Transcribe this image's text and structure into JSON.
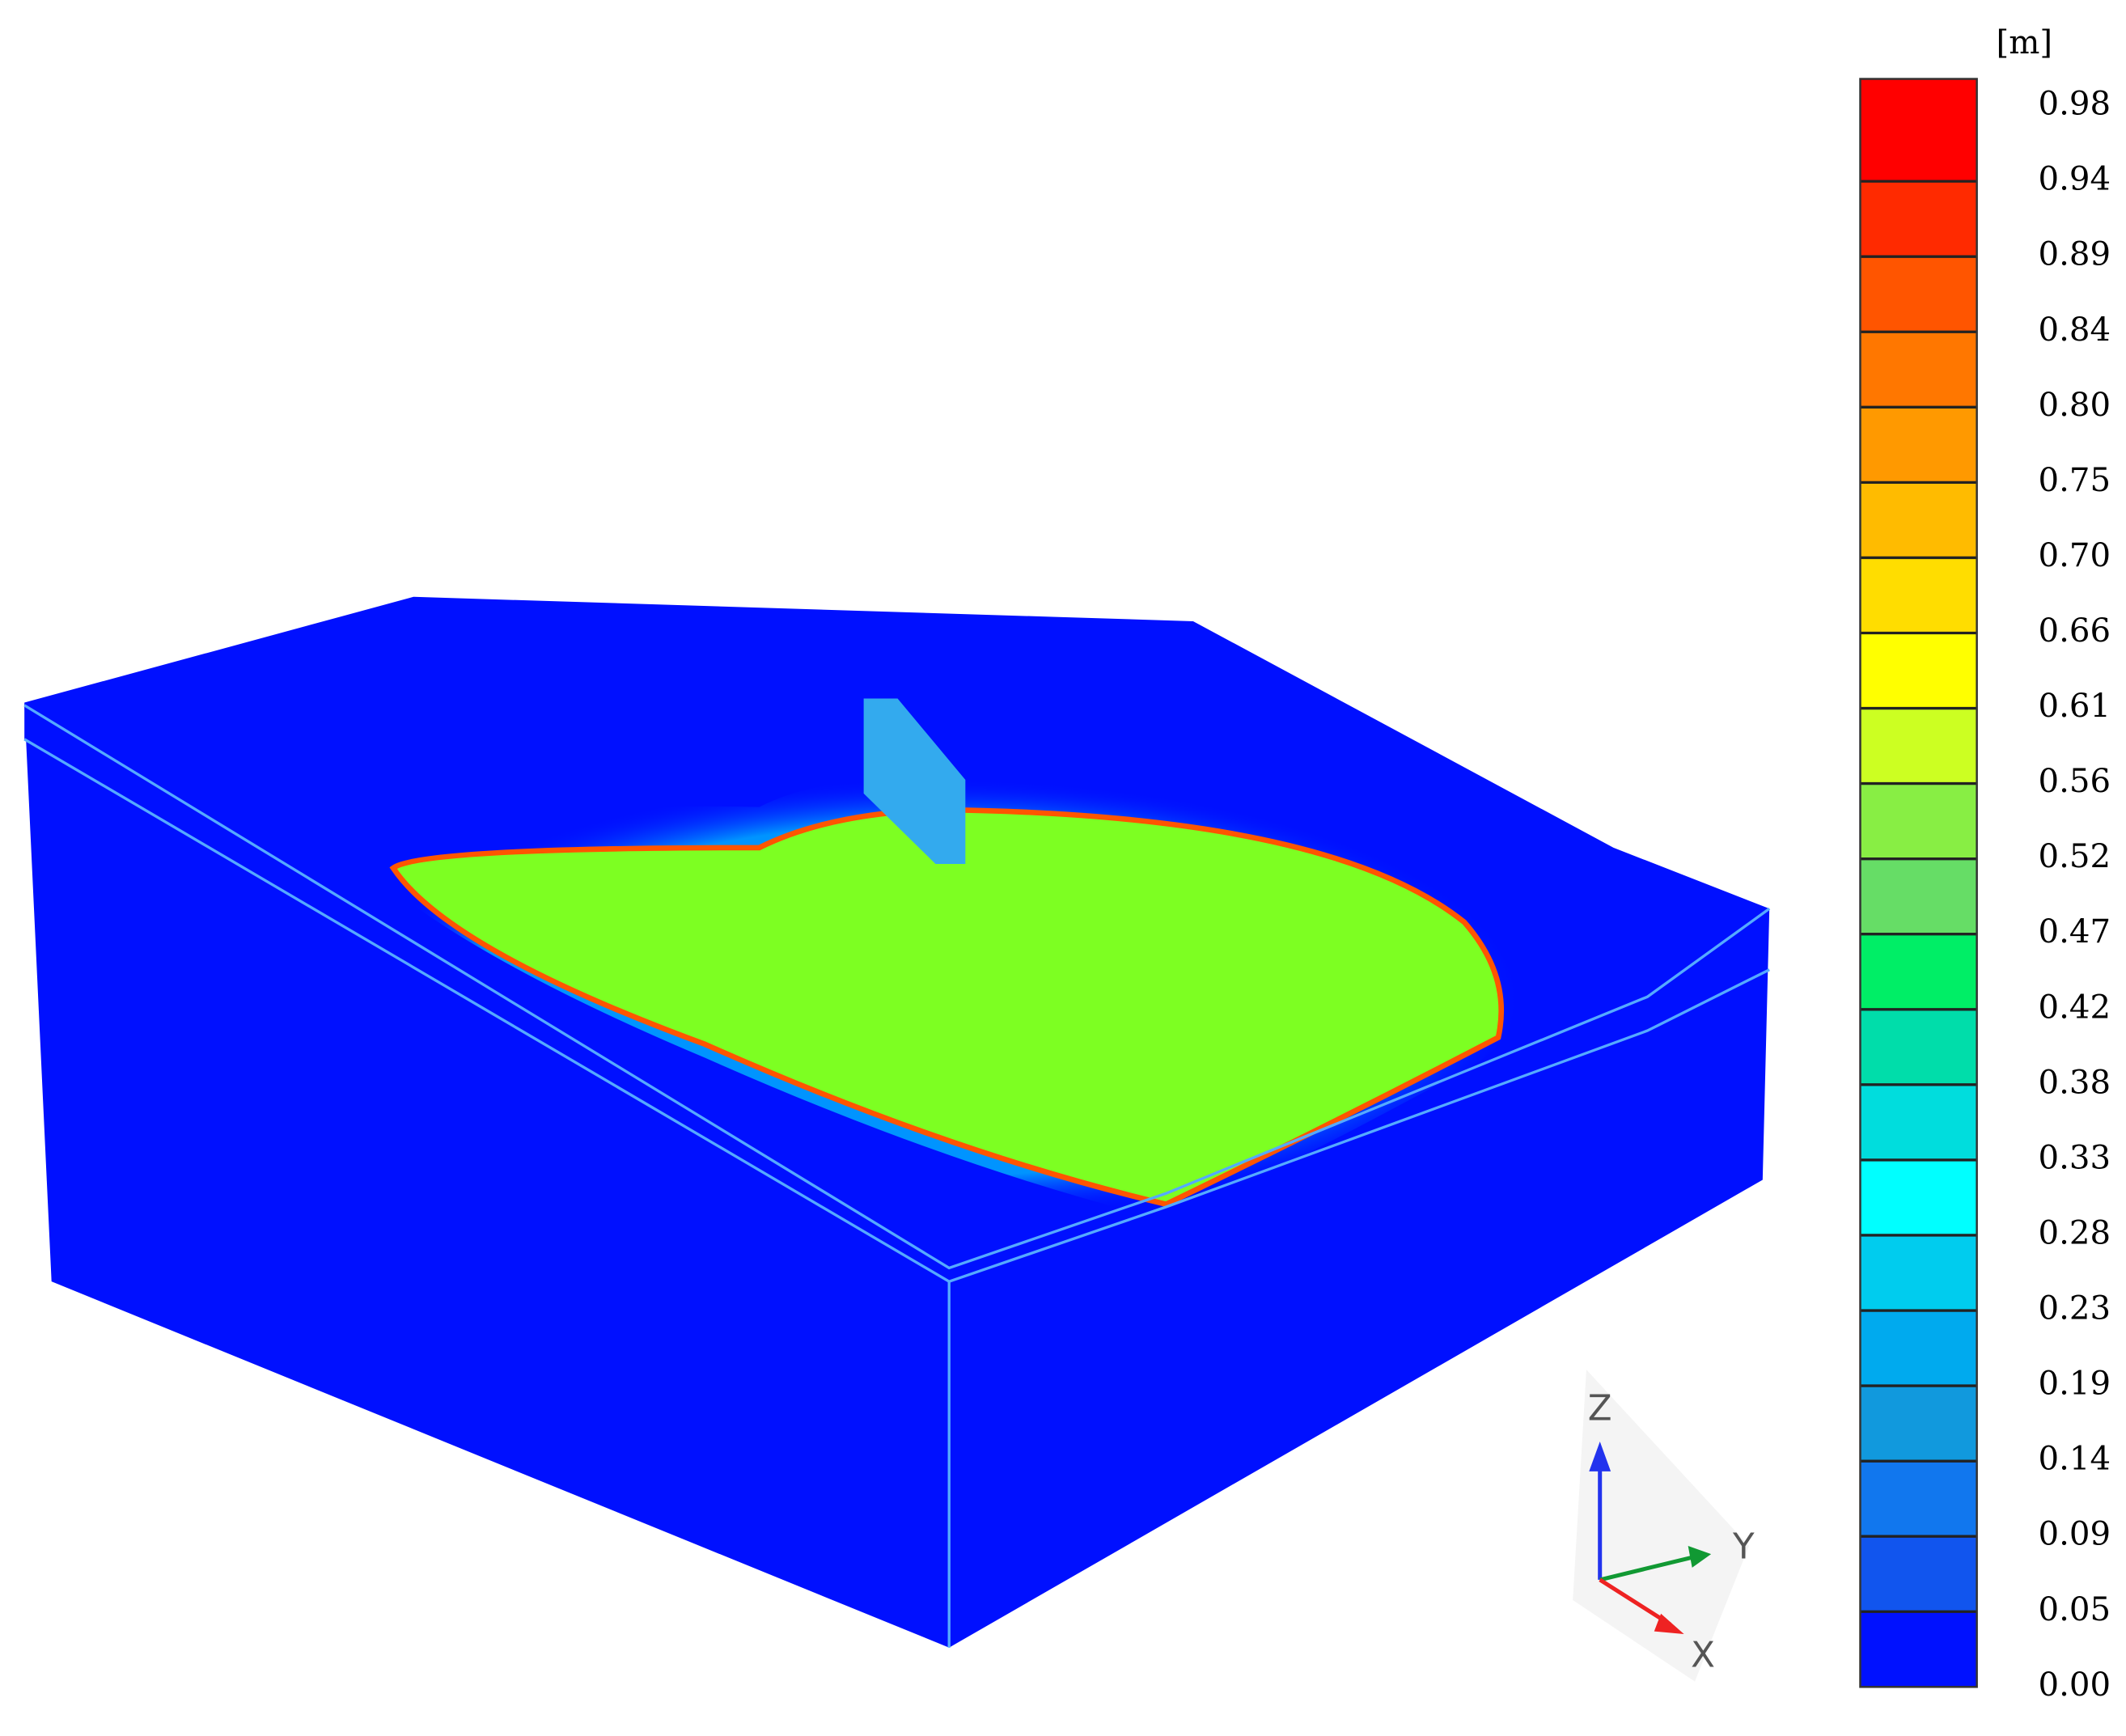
{
  "colorbar": {
    "unit": "[m]",
    "labels": [
      "0.98",
      "0.94",
      "0.89",
      "0.84",
      "0.80",
      "0.75",
      "0.70",
      "0.66",
      "0.61",
      "0.56",
      "0.52",
      "0.47",
      "0.42",
      "0.38",
      "0.33",
      "0.28",
      "0.23",
      "0.19",
      "0.14",
      "0.09",
      "0.05",
      "0.00"
    ],
    "colors": [
      "#ff0000",
      "#ff2a00",
      "#ff5500",
      "#ff7700",
      "#ff9900",
      "#ffbb00",
      "#ffdd00",
      "#ffff00",
      "#ccff22",
      "#88ee44",
      "#66dd66",
      "#00ee66",
      "#00ddaa",
      "#00dddd",
      "#00ffff",
      "#00ccee",
      "#00aaee",
      "#1199dd",
      "#1177ee",
      "#1155ee",
      "#1133ff",
      "#0011ff"
    ]
  },
  "axes": {
    "z": "Z",
    "y": "Y",
    "x": "X"
  }
}
